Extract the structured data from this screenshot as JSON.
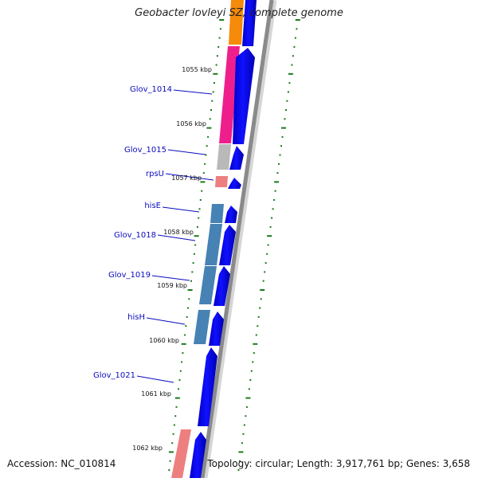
{
  "title": "Geobacter lovleyi SZ, complete genome",
  "footer": {
    "accession": "Accession: NC_010814",
    "summary": "Topology: circular; Length: 3,917,761 bp; Genes: 3,658"
  },
  "genes": [
    {
      "label": "Glov_1014",
      "color": "#ee1f8c"
    },
    {
      "label": "Glov_1015",
      "color": "#b9b9b9"
    },
    {
      "label": "rpsU",
      "color": "#ee7f7f"
    },
    {
      "label": "hisE",
      "color": "#4682b4"
    },
    {
      "label": "Glov_1018",
      "color": "#4682b4"
    },
    {
      "label": "Glov_1019",
      "color": "#4682b4"
    },
    {
      "label": "hisH",
      "color": "#4682b4"
    },
    {
      "label": "Glov_1021",
      "color": "#4682b4"
    }
  ],
  "ticks": [
    "1055 kbp",
    "1056 kbp",
    "1057 kbp",
    "1058 kbp",
    "1059 kbp",
    "1060 kbp",
    "1061 kbp",
    "1062 kbp"
  ],
  "colors": {
    "orf_strand": "#0000ee",
    "backbone": "#888888",
    "tick_marks": "#1a7a1a",
    "orange_feature": "#f58a0b",
    "label_text": "#0b0bbf"
  }
}
